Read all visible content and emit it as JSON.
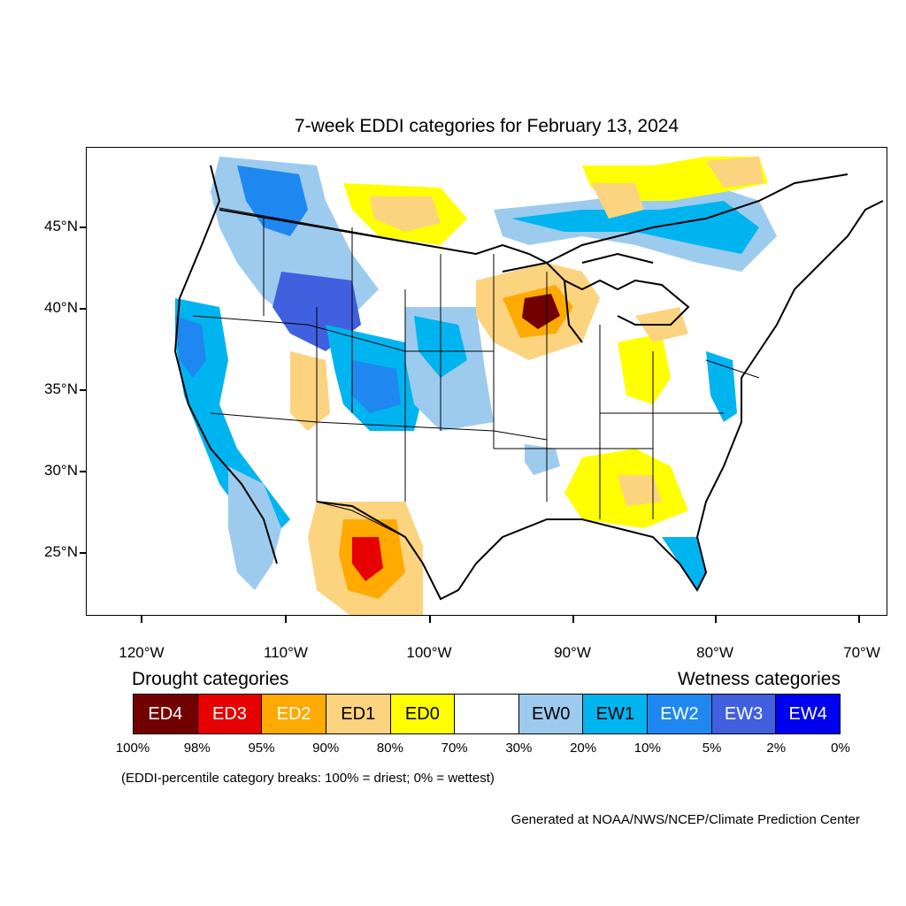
{
  "title": "7-week EDDI categories for February 13, 2024",
  "latitude_labels": [
    "45°N",
    "40°N",
    "35°N",
    "30°N",
    "25°N"
  ],
  "longitude_labels": [
    "120°W",
    "110°W",
    "100°W",
    "90°W",
    "80°W",
    "70°W"
  ],
  "legend": {
    "drought_heading": "Drought categories",
    "wetness_heading": "Wetness categories",
    "categories": [
      {
        "label": "ED4",
        "color": "#730000",
        "text_color": "#ffffff"
      },
      {
        "label": "ED3",
        "color": "#e60000",
        "text_color": "#ffffff"
      },
      {
        "label": "ED2",
        "color": "#ffaa00",
        "text_color": "#ffffff"
      },
      {
        "label": "ED1",
        "color": "#fcd37f",
        "text_color": "#000000"
      },
      {
        "label": "ED0",
        "color": "#ffff00",
        "text_color": "#000000"
      },
      {
        "label": "",
        "color": "#ffffff",
        "text_color": "#000000"
      },
      {
        "label": "EW0",
        "color": "#9dcbee",
        "text_color": "#000000"
      },
      {
        "label": "EW1",
        "color": "#00b4f0",
        "text_color": "#000000"
      },
      {
        "label": "EW2",
        "color": "#1e88f0",
        "text_color": "#ffffff"
      },
      {
        "label": "EW3",
        "color": "#4060e0",
        "text_color": "#ffffff"
      },
      {
        "label": "EW4",
        "color": "#0000f0",
        "text_color": "#ffffff"
      }
    ],
    "percent_breaks": [
      "100%",
      "98%",
      "95%",
      "90%",
      "80%",
      "70%",
      "30%",
      "20%",
      "10%",
      "5%",
      "2%",
      "0%"
    ]
  },
  "note": "(EDDI-percentile category breaks: 100% = driest; 0% = wettest)",
  "credit": "Generated at NOAA/NWS/NCEP/Climate Prediction Center"
}
